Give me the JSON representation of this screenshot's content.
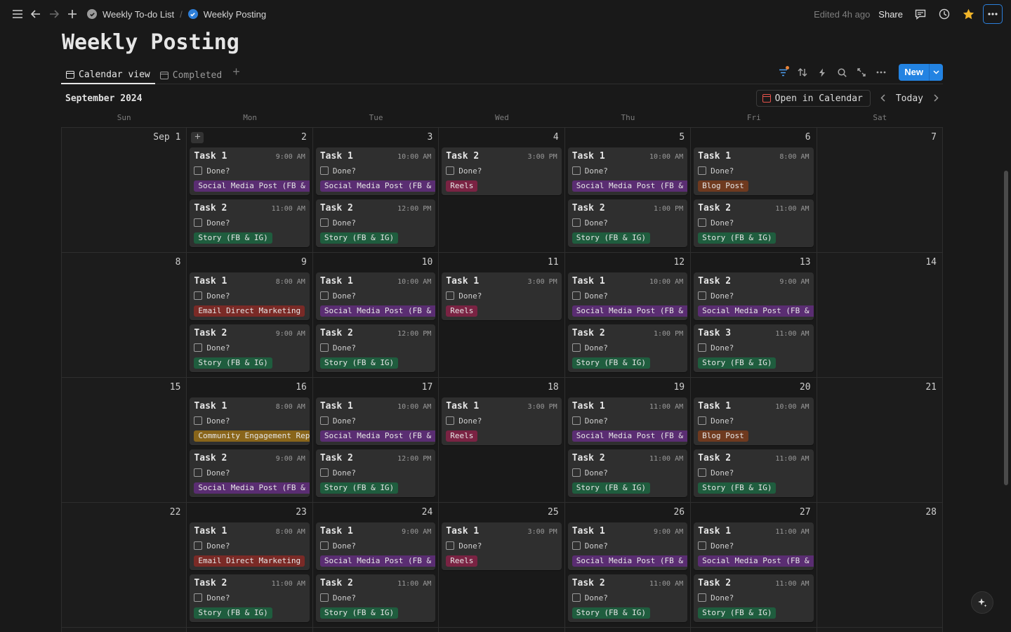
{
  "topbar": {
    "breadcrumbs": [
      {
        "label": "Weekly To-do List",
        "icon": "check-circle-gray-icon"
      },
      {
        "label": "Weekly Posting",
        "icon": "check-circle-blue-icon"
      }
    ],
    "separator": "/",
    "edited": "Edited 4h ago",
    "share": "Share"
  },
  "page": {
    "title": "Weekly Posting"
  },
  "views": {
    "tabs": [
      {
        "label": "Calendar view",
        "active": true
      },
      {
        "label": "Completed",
        "active": false
      }
    ],
    "new_label": "New"
  },
  "calendar": {
    "month": "September 2024",
    "open_in_calendar": "Open in Calendar",
    "today": "Today",
    "weekdays": [
      "Sun",
      "Mon",
      "Tue",
      "Wed",
      "Thu",
      "Fri",
      "Sat"
    ],
    "weeks": [
      [
        {
          "day": "Sep 1",
          "cards": []
        },
        {
          "day": "2",
          "cards": [
            {
              "title": "Task 1",
              "time": "9:00 AM",
              "done": "Done?",
              "tag": "Social Media Post (FB & IG)",
              "tag_color": "purple"
            },
            {
              "title": "Task 2",
              "time": "11:00 AM",
              "done": "Done?",
              "tag": "Story (FB & IG)",
              "tag_color": "green"
            }
          ]
        },
        {
          "day": "3",
          "cards": [
            {
              "title": "Task 1",
              "time": "10:00 AM",
              "done": "Done?",
              "tag": "Social Media Post (FB & IG)",
              "tag_color": "purple"
            },
            {
              "title": "Task 2",
              "time": "12:00 PM",
              "done": "Done?",
              "tag": "Story (FB & IG)",
              "tag_color": "green"
            }
          ]
        },
        {
          "day": "4",
          "cards": [
            {
              "title": "Task 2",
              "time": "3:00 PM",
              "done": "Done?",
              "tag": "Reels",
              "tag_color": "pink"
            }
          ]
        },
        {
          "day": "5",
          "cards": [
            {
              "title": "Task 1",
              "time": "10:00 AM",
              "done": "Done?",
              "tag": "Social Media Post (FB & IG)",
              "tag_color": "purple"
            },
            {
              "title": "Task 2",
              "time": "1:00 PM",
              "done": "Done?",
              "tag": "Story (FB & IG)",
              "tag_color": "green"
            }
          ]
        },
        {
          "day": "6",
          "cards": [
            {
              "title": "Task 1",
              "time": "8:00 AM",
              "done": "Done?",
              "tag": "Blog Post",
              "tag_color": "orange"
            },
            {
              "title": "Task 2",
              "time": "11:00 AM",
              "done": "Done?",
              "tag": "Story (FB & IG)",
              "tag_color": "green"
            }
          ]
        },
        {
          "day": "7",
          "cards": []
        }
      ],
      [
        {
          "day": "8",
          "cards": []
        },
        {
          "day": "9",
          "cards": [
            {
              "title": "Task 1",
              "time": "8:00 AM",
              "done": "Done?",
              "tag": "Email Direct Marketing",
              "tag_color": "red"
            },
            {
              "title": "Task 2",
              "time": "9:00 AM",
              "done": "Done?",
              "tag": "Story (FB & IG)",
              "tag_color": "green"
            }
          ]
        },
        {
          "day": "10",
          "cards": [
            {
              "title": "Task 1",
              "time": "10:00 AM",
              "done": "Done?",
              "tag": "Social Media Post (FB & IG)",
              "tag_color": "purple"
            },
            {
              "title": "Task 2",
              "time": "12:00 PM",
              "done": "Done?",
              "tag": "Story (FB & IG)",
              "tag_color": "green"
            }
          ]
        },
        {
          "day": "11",
          "cards": [
            {
              "title": "Task 1",
              "time": "3:00 PM",
              "done": "Done?",
              "tag": "Reels",
              "tag_color": "pink"
            }
          ]
        },
        {
          "day": "12",
          "cards": [
            {
              "title": "Task 1",
              "time": "10:00 AM",
              "done": "Done?",
              "tag": "Social Media Post (FB & IG)",
              "tag_color": "purple"
            },
            {
              "title": "Task 2",
              "time": "1:00 PM",
              "done": "Done?",
              "tag": "Story (FB & IG)",
              "tag_color": "green"
            }
          ]
        },
        {
          "day": "13",
          "cards": [
            {
              "title": "Task 2",
              "time": "9:00 AM",
              "done": "Done?",
              "tag": "Social Media Post (FB & IG)",
              "tag_color": "purple"
            },
            {
              "title": "Task 3",
              "time": "11:00 AM",
              "done": "Done?",
              "tag": "Story (FB & IG)",
              "tag_color": "green"
            }
          ]
        },
        {
          "day": "14",
          "cards": []
        }
      ],
      [
        {
          "day": "15",
          "cards": []
        },
        {
          "day": "16",
          "cards": [
            {
              "title": "Task 1",
              "time": "8:00 AM",
              "done": "Done?",
              "tag": "Community Engagement Reply",
              "tag_color": "yellow"
            },
            {
              "title": "Task 2",
              "time": "9:00 AM",
              "done": "Done?",
              "tag": "Social Media Post (FB & IG)",
              "tag_color": "purple"
            }
          ]
        },
        {
          "day": "17",
          "cards": [
            {
              "title": "Task 1",
              "time": "10:00 AM",
              "done": "Done?",
              "tag": "Social Media Post (FB & IG)",
              "tag_color": "purple"
            },
            {
              "title": "Task 2",
              "time": "12:00 PM",
              "done": "Done?",
              "tag": "Story (FB & IG)",
              "tag_color": "green"
            }
          ]
        },
        {
          "day": "18",
          "cards": [
            {
              "title": "Task 1",
              "time": "3:00 PM",
              "done": "Done?",
              "tag": "Reels",
              "tag_color": "pink"
            }
          ]
        },
        {
          "day": "19",
          "cards": [
            {
              "title": "Task 1",
              "time": "11:00 AM",
              "done": "Done?",
              "tag": "Social Media Post (FB & IG)",
              "tag_color": "purple"
            },
            {
              "title": "Task 2",
              "time": "11:00 AM",
              "done": "Done?",
              "tag": "Story (FB & IG)",
              "tag_color": "green"
            }
          ]
        },
        {
          "day": "20",
          "cards": [
            {
              "title": "Task 1",
              "time": "10:00 AM",
              "done": "Done?",
              "tag": "Blog Post",
              "tag_color": "orange"
            },
            {
              "title": "Task 2",
              "time": "11:00 AM",
              "done": "Done?",
              "tag": "Story (FB & IG)",
              "tag_color": "green"
            }
          ]
        },
        {
          "day": "21",
          "cards": []
        }
      ],
      [
        {
          "day": "22",
          "cards": []
        },
        {
          "day": "23",
          "cards": [
            {
              "title": "Task 1",
              "time": "8:00 AM",
              "done": "Done?",
              "tag": "Email Direct Marketing",
              "tag_color": "red"
            },
            {
              "title": "Task 2",
              "time": "11:00 AM",
              "done": "Done?",
              "tag": "Story (FB & IG)",
              "tag_color": "green"
            }
          ]
        },
        {
          "day": "24",
          "cards": [
            {
              "title": "Task 1",
              "time": "9:00 AM",
              "done": "Done?",
              "tag": "Social Media Post (FB & IG)",
              "tag_color": "purple"
            },
            {
              "title": "Task 2",
              "time": "11:00 AM",
              "done": "Done?",
              "tag": "Story (FB & IG)",
              "tag_color": "green"
            }
          ]
        },
        {
          "day": "25",
          "cards": [
            {
              "title": "Task 1",
              "time": "3:00 PM",
              "done": "Done?",
              "tag": "Reels",
              "tag_color": "pink"
            }
          ]
        },
        {
          "day": "26",
          "cards": [
            {
              "title": "Task 1",
              "time": "9:00 AM",
              "done": "Done?",
              "tag": "Social Media Post (FB & IG)",
              "tag_color": "purple"
            },
            {
              "title": "Task 2",
              "time": "11:00 AM",
              "done": "Done?",
              "tag": "Story (FB & IG)",
              "tag_color": "green"
            }
          ]
        },
        {
          "day": "27",
          "cards": [
            {
              "title": "Task 1",
              "time": "11:00 AM",
              "done": "Done?",
              "tag": "Social Media Post (FB & IG)",
              "tag_color": "purple"
            },
            {
              "title": "Task 2",
              "time": "11:00 AM",
              "done": "Done?",
              "tag": "Story (FB & IG)",
              "tag_color": "green"
            }
          ]
        },
        {
          "day": "28",
          "cards": []
        }
      ]
    ]
  },
  "colors": {
    "accent": "#2383e2",
    "background": "#191919",
    "favorite_star": "#f0b429"
  }
}
